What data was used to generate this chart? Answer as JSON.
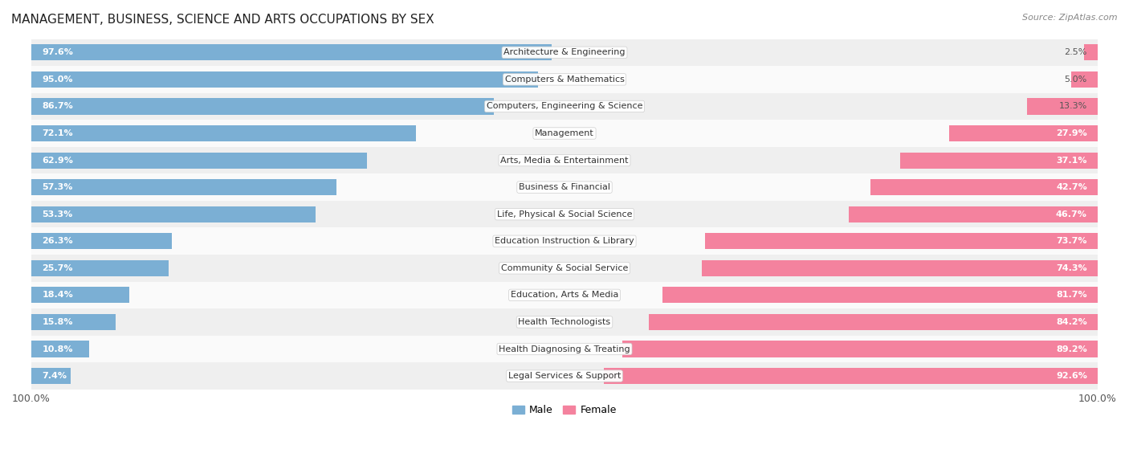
{
  "title": "MANAGEMENT, BUSINESS, SCIENCE AND ARTS OCCUPATIONS BY SEX",
  "source": "Source: ZipAtlas.com",
  "categories": [
    "Architecture & Engineering",
    "Computers & Mathematics",
    "Computers, Engineering & Science",
    "Management",
    "Arts, Media & Entertainment",
    "Business & Financial",
    "Life, Physical & Social Science",
    "Education Instruction & Library",
    "Community & Social Service",
    "Education, Arts & Media",
    "Health Technologists",
    "Health Diagnosing & Treating",
    "Legal Services & Support"
  ],
  "male_pct": [
    97.6,
    95.0,
    86.7,
    72.1,
    62.9,
    57.3,
    53.3,
    26.3,
    25.7,
    18.4,
    15.8,
    10.8,
    7.4
  ],
  "female_pct": [
    2.5,
    5.0,
    13.3,
    27.9,
    37.1,
    42.7,
    46.7,
    73.7,
    74.3,
    81.7,
    84.2,
    89.2,
    92.6
  ],
  "male_color": "#7bafd4",
  "female_color": "#f4829e",
  "background_row_odd": "#efefef",
  "background_row_even": "#fafafa",
  "bar_height": 0.6,
  "label_fontsize": 8.0,
  "title_fontsize": 11,
  "legend_fontsize": 9,
  "pct_fontsize": 8.0,
  "axis_label_fontsize": 9
}
